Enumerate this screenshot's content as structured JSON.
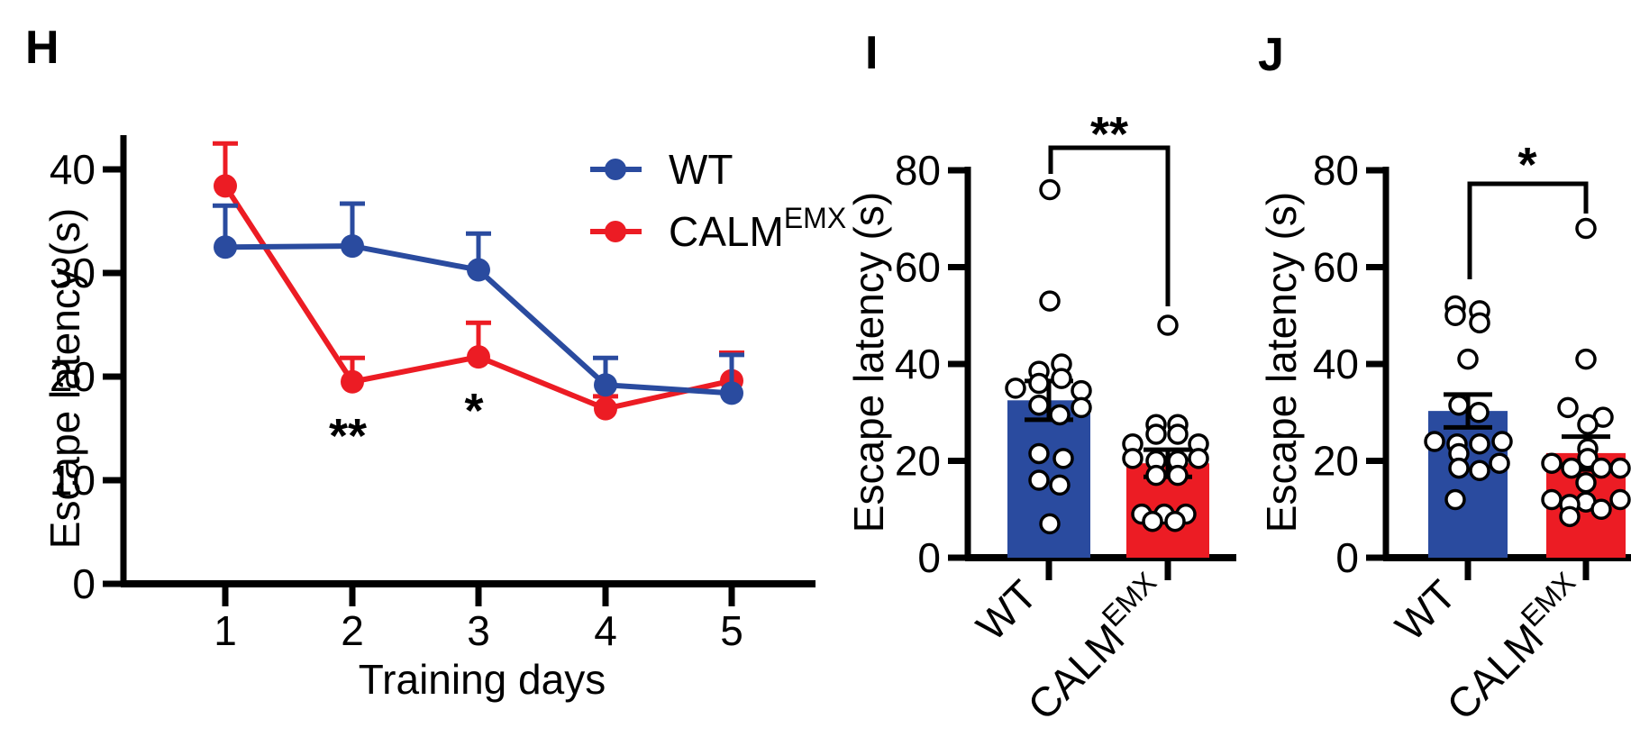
{
  "figure": {
    "background": "#ffffff",
    "ink_color": "#000000",
    "wt_color": "#2a4b9f",
    "calm_color": "#ec1c24",
    "point_fill": "#ffffff"
  },
  "chart_data": [
    {
      "type": "line",
      "panel_letter": "H",
      "xlabel": "Training days",
      "ylabel": "Escape latency (s)",
      "xticks": [
        "1",
        "2",
        "3",
        "4",
        "5"
      ],
      "yticks": [
        0,
        10,
        20,
        30,
        40
      ],
      "ylim": [
        0,
        43
      ],
      "grid": false,
      "legend_position": "top-right",
      "legend": [
        {
          "label": "WT",
          "sup": "",
          "color": "#2a4b9f"
        },
        {
          "label": "CALM",
          "sup": "EMX",
          "color": "#ec1c24"
        }
      ],
      "series": [
        {
          "name": "CALM EMX",
          "color": "#ec1c24",
          "values": [
            38.4,
            19.5,
            21.9,
            16.9,
            19.6
          ],
          "err_up": [
            4.1,
            2.3,
            3.3,
            1.2,
            2.7
          ]
        },
        {
          "name": "WT",
          "color": "#2a4b9f",
          "values": [
            32.5,
            32.6,
            30.3,
            19.2,
            18.4
          ],
          "err_up": [
            4.0,
            4.1,
            3.5,
            2.6,
            3.7
          ]
        }
      ],
      "annotations": [
        {
          "text": "**",
          "at_day": "2"
        },
        {
          "text": "*",
          "at_day": "3"
        }
      ]
    },
    {
      "type": "bar",
      "panel_letter": "I",
      "ylabel": "Escape latency (s)",
      "categories": [
        {
          "base": "WT",
          "sup": ""
        },
        {
          "base": "CALM",
          "sup": "EMX"
        }
      ],
      "values": [
        32.5,
        19.5
      ],
      "errors": [
        4.0,
        2.8
      ],
      "bar_colors": [
        "#2a4b9f",
        "#ec1c24"
      ],
      "yticks": [
        0,
        20,
        40,
        60,
        80
      ],
      "ylim": [
        0,
        85
      ],
      "significance": "**",
      "points": [
        [
          {
            "v": 76,
            "dx": 1
          },
          {
            "v": 53,
            "dx": 1
          },
          {
            "v": 40,
            "dx": 14
          },
          {
            "v": 38.5,
            "dx": -11
          },
          {
            "v": 37,
            "dx": 14
          },
          {
            "v": 36,
            "dx": -11
          },
          {
            "v": 35,
            "dx": -37
          },
          {
            "v": 34.5,
            "dx": 36
          },
          {
            "v": 31.5,
            "dx": -11
          },
          {
            "v": 31,
            "dx": 36
          },
          {
            "v": 29.5,
            "dx": 12
          },
          {
            "v": 21.5,
            "dx": -11
          },
          {
            "v": 20.5,
            "dx": 16
          },
          {
            "v": 16,
            "dx": -11
          },
          {
            "v": 15,
            "dx": 12
          },
          {
            "v": 7,
            "dx": 1
          }
        ],
        [
          {
            "v": 48,
            "dx": 0
          },
          {
            "v": 27.5,
            "dx": -13
          },
          {
            "v": 27.5,
            "dx": 11
          },
          {
            "v": 25.5,
            "dx": -13
          },
          {
            "v": 25.5,
            "dx": 11
          },
          {
            "v": 23.5,
            "dx": -39
          },
          {
            "v": 23.5,
            "dx": 34
          },
          {
            "v": 20.5,
            "dx": -39
          },
          {
            "v": 20.5,
            "dx": 34
          },
          {
            "v": 20,
            "dx": -13
          },
          {
            "v": 20,
            "dx": 11
          },
          {
            "v": 17,
            "dx": -13
          },
          {
            "v": 17,
            "dx": 11
          },
          {
            "v": 9,
            "dx": -29
          },
          {
            "v": 9,
            "dx": -4
          },
          {
            "v": 9,
            "dx": 20
          },
          {
            "v": 7.5,
            "dx": -17
          },
          {
            "v": 7.5,
            "dx": 8
          }
        ]
      ]
    },
    {
      "type": "bar",
      "panel_letter": "J",
      "ylabel": "Escape latency (s)",
      "categories": [
        {
          "base": "WT",
          "sup": ""
        },
        {
          "base": "CALM",
          "sup": "EMX"
        }
      ],
      "values": [
        30.3,
        21.6
      ],
      "errors": [
        3.4,
        3.4
      ],
      "bar_colors": [
        "#2a4b9f",
        "#ec1c24"
      ],
      "yticks": [
        0,
        20,
        40,
        60,
        80
      ],
      "ylim": [
        0,
        85
      ],
      "significance": "*",
      "points": [
        [
          {
            "v": 52,
            "dx": -14
          },
          {
            "v": 51,
            "dx": 13
          },
          {
            "v": 50,
            "dx": -14
          },
          {
            "v": 48.5,
            "dx": 13
          },
          {
            "v": 41,
            "dx": 0
          },
          {
            "v": 31.5,
            "dx": -10
          },
          {
            "v": 30,
            "dx": 12
          },
          {
            "v": 24,
            "dx": -37
          },
          {
            "v": 24,
            "dx": 38
          },
          {
            "v": 23.5,
            "dx": -12
          },
          {
            "v": 23.5,
            "dx": 13
          },
          {
            "v": 21.5,
            "dx": -10
          },
          {
            "v": 19.5,
            "dx": 35
          },
          {
            "v": 18.5,
            "dx": -10
          },
          {
            "v": 18,
            "dx": 13
          },
          {
            "v": 12,
            "dx": -14
          }
        ],
        [
          {
            "v": 68,
            "dx": 0
          },
          {
            "v": 41,
            "dx": 0
          },
          {
            "v": 31,
            "dx": -20
          },
          {
            "v": 29,
            "dx": 19
          },
          {
            "v": 27.5,
            "dx": 2
          },
          {
            "v": 22.5,
            "dx": 2
          },
          {
            "v": 20.5,
            "dx": 2
          },
          {
            "v": 19.5,
            "dx": -38
          },
          {
            "v": 18.5,
            "dx": -16
          },
          {
            "v": 18.5,
            "dx": 17
          },
          {
            "v": 18.5,
            "dx": 38
          },
          {
            "v": 15.5,
            "dx": 0
          },
          {
            "v": 12,
            "dx": -38
          },
          {
            "v": 12,
            "dx": 38
          },
          {
            "v": 11.5,
            "dx": 0
          },
          {
            "v": 11,
            "dx": -18
          },
          {
            "v": 10,
            "dx": 17
          },
          {
            "v": 8.5,
            "dx": -18
          }
        ]
      ]
    }
  ]
}
